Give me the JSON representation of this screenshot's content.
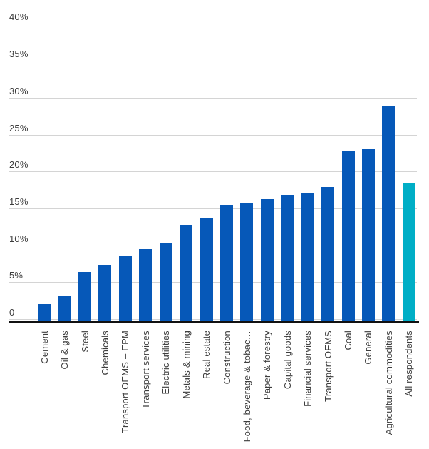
{
  "chart_data": {
    "type": "bar",
    "title": "",
    "xlabel": "",
    "ylabel": "",
    "unit": "%",
    "ylim": [
      0,
      40
    ],
    "grid": true,
    "legend": false,
    "categories": [
      "Cement",
      "Oil & gas",
      "Steel",
      "Chemicals",
      "Transport OEMS – EPM",
      "Transport services",
      "Electric utilities",
      "Metals & mining",
      "Real estate",
      "Construction",
      "Food, beverage & tobac…",
      "Paper & forestry",
      "Capital goods",
      "Financial services",
      "Transport OEMS",
      "Coal",
      "General",
      "Agricultural commodities",
      "All respondents"
    ],
    "values": [
      2.2,
      3.3,
      6.6,
      7.5,
      8.8,
      9.7,
      10.4,
      13.0,
      13.8,
      15.7,
      16.0,
      16.4,
      17.0,
      17.3,
      18.1,
      22.9,
      23.2,
      29.0,
      18.6
    ],
    "yticks": [
      {
        "value": 40,
        "label": "40%"
      },
      {
        "value": 35,
        "label": "35%"
      },
      {
        "value": 30,
        "label": "30%"
      },
      {
        "value": 25,
        "label": "25%"
      },
      {
        "value": 20,
        "label": "20%"
      },
      {
        "value": 15,
        "label": "15%"
      },
      {
        "value": 10,
        "label": "10%"
      },
      {
        "value": 5,
        "label": "5%"
      },
      {
        "value": 0,
        "label": "0"
      }
    ],
    "highlight_category": "All respondents",
    "colors": {
      "bar_default": "#0658b8",
      "bar_highlight": "#00aec6",
      "gridline": "#d4d4d4",
      "axis": "#111111",
      "text": "#3d3d3d"
    }
  }
}
